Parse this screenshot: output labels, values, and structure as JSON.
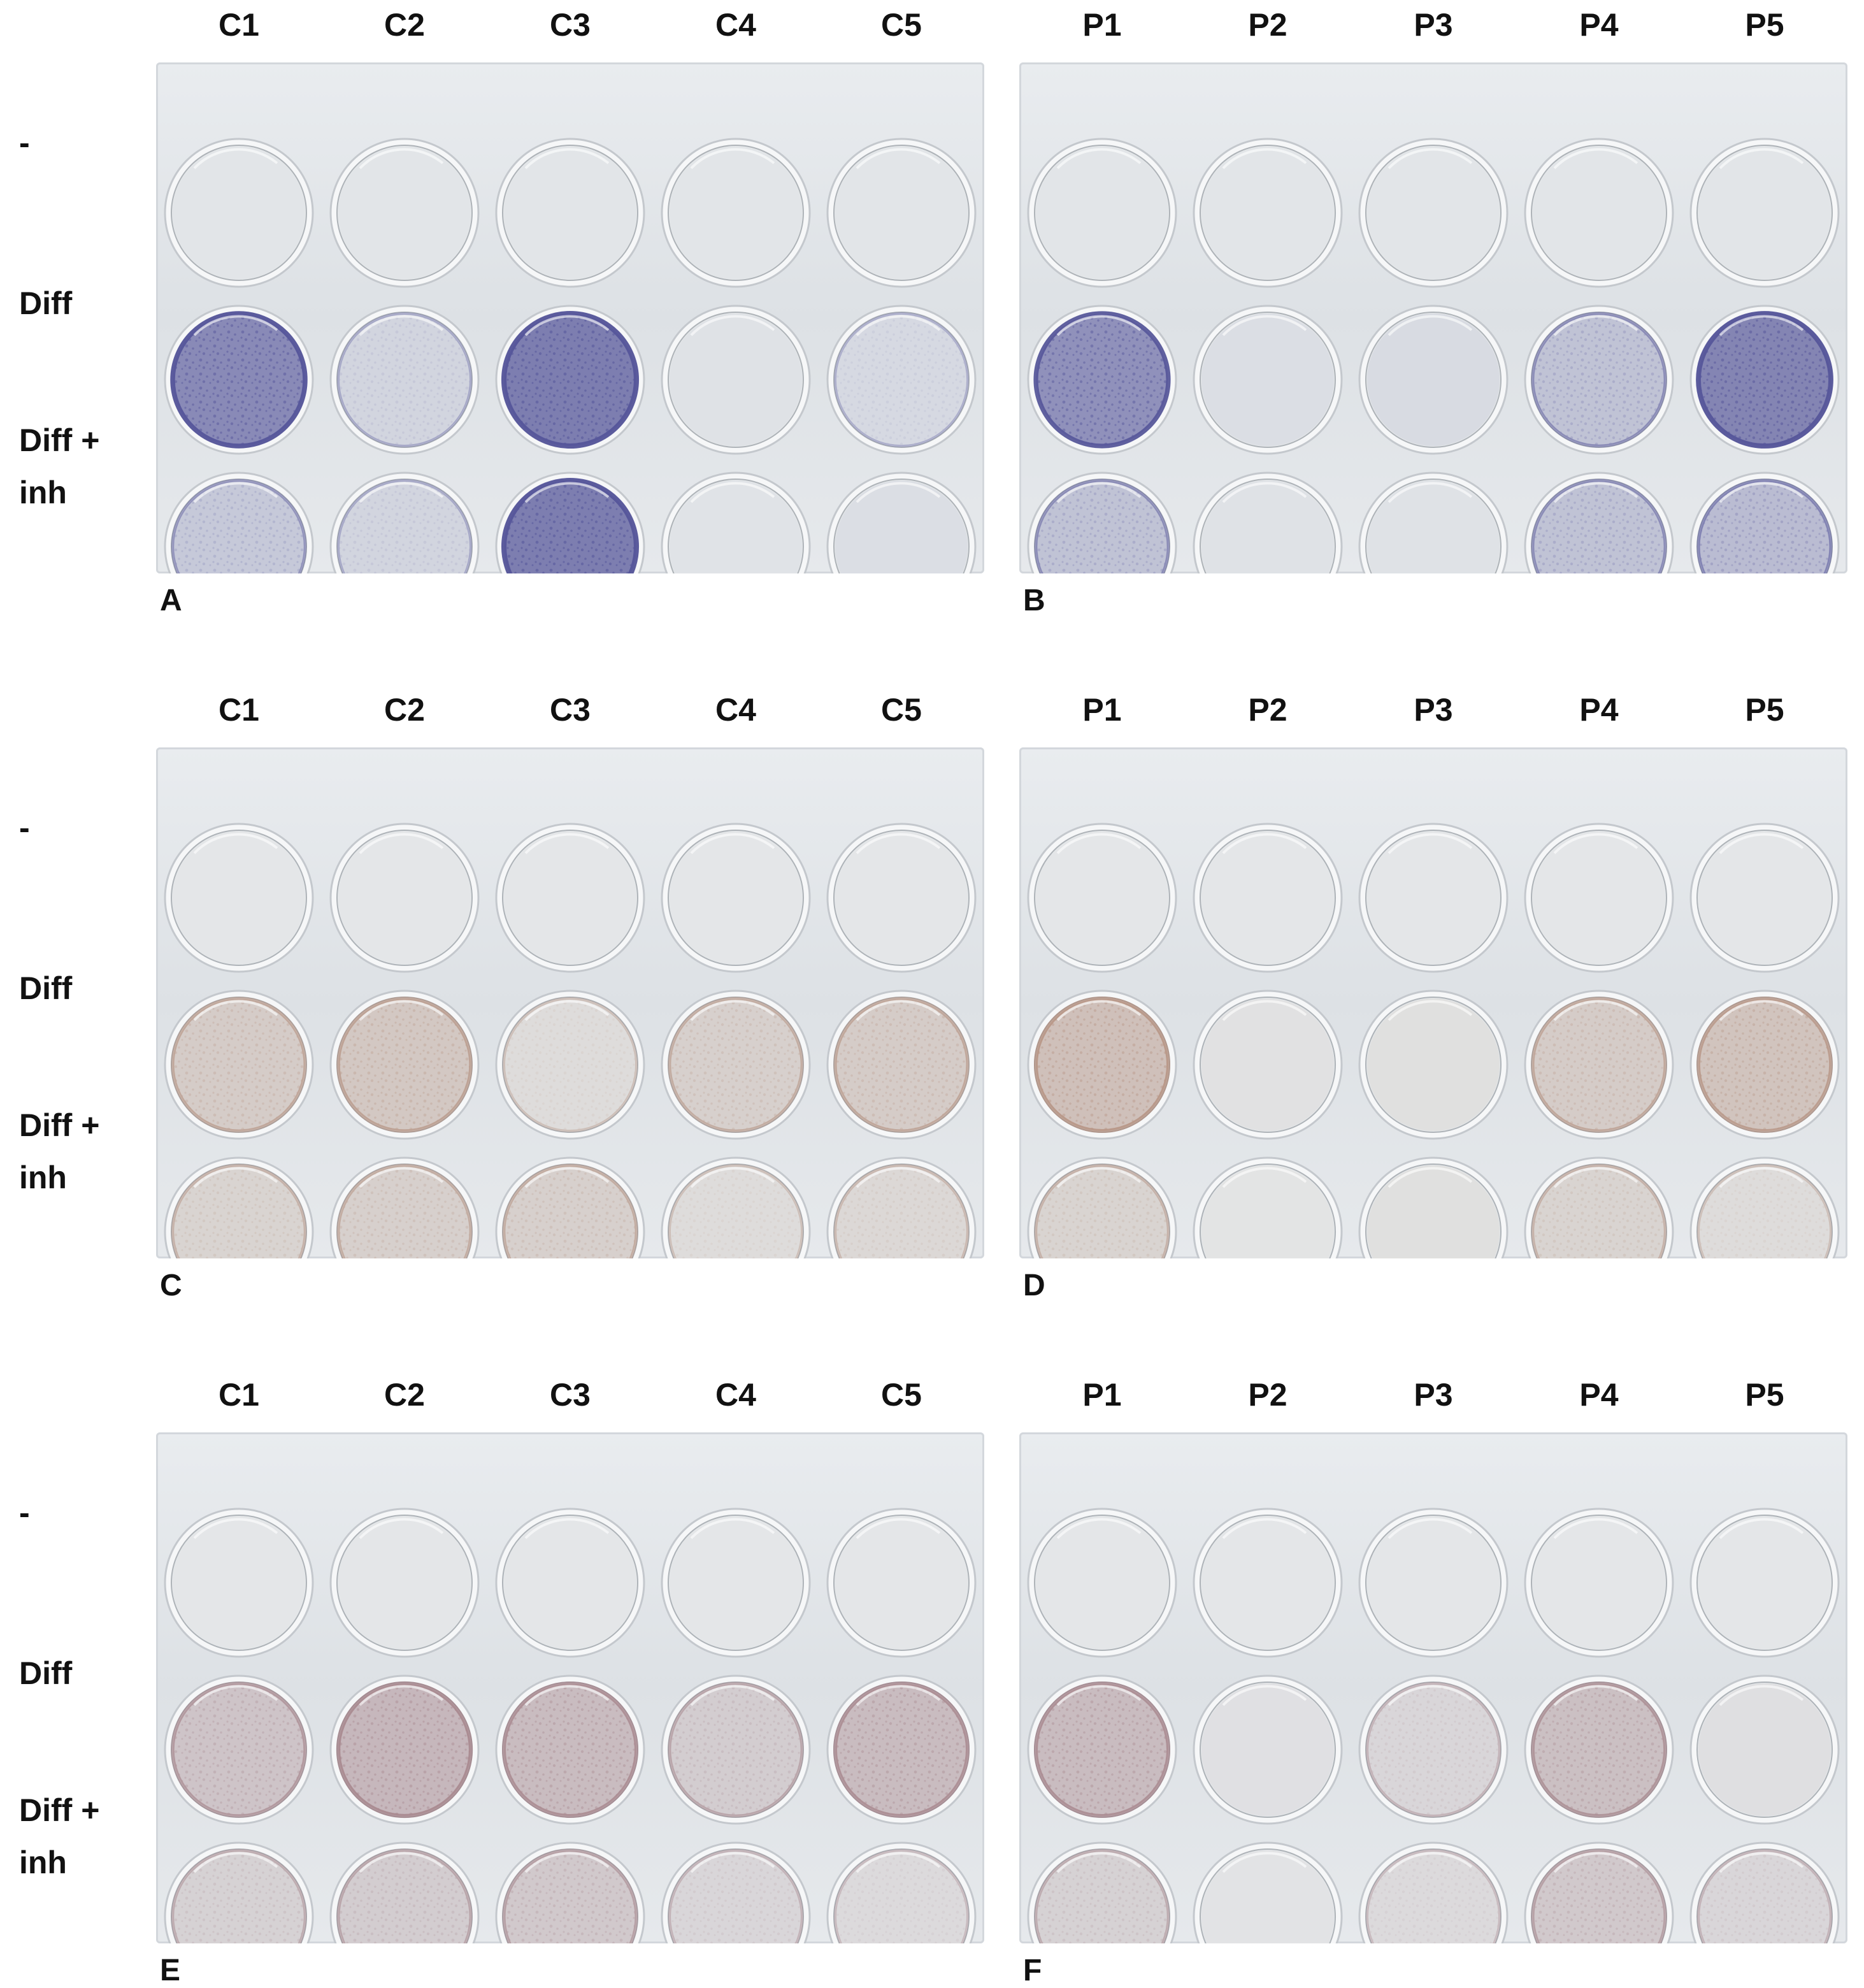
{
  "row_labels": [
    "-",
    "Diff",
    "Diff +\ninh"
  ],
  "panels": [
    {
      "letter": "A",
      "side": "left",
      "section": 0,
      "columns": [
        "C1",
        "C2",
        "C3",
        "C4",
        "C5"
      ],
      "stain": "#55559a",
      "intensity": [
        [
          0.02,
          0.02,
          0.02,
          0.02,
          0.02
        ],
        [
          0.75,
          0.15,
          0.85,
          0.05,
          0.12
        ],
        [
          0.25,
          0.15,
          0.85,
          0.03,
          0.08
        ]
      ]
    },
    {
      "letter": "B",
      "side": "right",
      "section": 0,
      "columns": [
        "P1",
        "P2",
        "P3",
        "P4",
        "P5"
      ],
      "stain": "#55559a",
      "intensity": [
        [
          0.02,
          0.02,
          0.02,
          0.02,
          0.02
        ],
        [
          0.7,
          0.08,
          0.1,
          0.3,
          0.8
        ],
        [
          0.3,
          0.05,
          0.05,
          0.3,
          0.35
        ]
      ]
    },
    {
      "letter": "C",
      "side": "left",
      "section": 1,
      "columns": [
        "C1",
        "C2",
        "C3",
        "C4",
        "C5"
      ],
      "stain": "#b08a78",
      "intensity": [
        [
          0.02,
          0.02,
          0.02,
          0.02,
          0.02
        ],
        [
          0.35,
          0.4,
          0.15,
          0.3,
          0.35
        ],
        [
          0.25,
          0.3,
          0.3,
          0.15,
          0.2
        ]
      ]
    },
    {
      "letter": "D",
      "side": "right",
      "section": 1,
      "columns": [
        "P1",
        "P2",
        "P3",
        "P4",
        "P5"
      ],
      "stain": "#b08a78",
      "intensity": [
        [
          0.02,
          0.02,
          0.02,
          0.02,
          0.02
        ],
        [
          0.5,
          0.08,
          0.1,
          0.35,
          0.45
        ],
        [
          0.25,
          0.05,
          0.1,
          0.25,
          0.15
        ]
      ]
    },
    {
      "letter": "E",
      "side": "left",
      "section": 2,
      "columns": [
        "C1",
        "C2",
        "C3",
        "C4",
        "C5"
      ],
      "stain": "#a27f86",
      "intensity": [
        [
          0.02,
          0.02,
          0.02,
          0.02,
          0.02
        ],
        [
          0.4,
          0.55,
          0.5,
          0.3,
          0.5
        ],
        [
          0.25,
          0.3,
          0.35,
          0.2,
          0.15
        ]
      ]
    },
    {
      "letter": "F",
      "side": "right",
      "section": 2,
      "columns": [
        "P1",
        "P2",
        "P3",
        "P4",
        "P5"
      ],
      "stain": "#a27f86",
      "intensity": [
        [
          0.02,
          0.02,
          0.02,
          0.02,
          0.02
        ],
        [
          0.5,
          0.08,
          0.2,
          0.45,
          0.1
        ],
        [
          0.25,
          0.05,
          0.15,
          0.35,
          0.2
        ]
      ]
    }
  ]
}
